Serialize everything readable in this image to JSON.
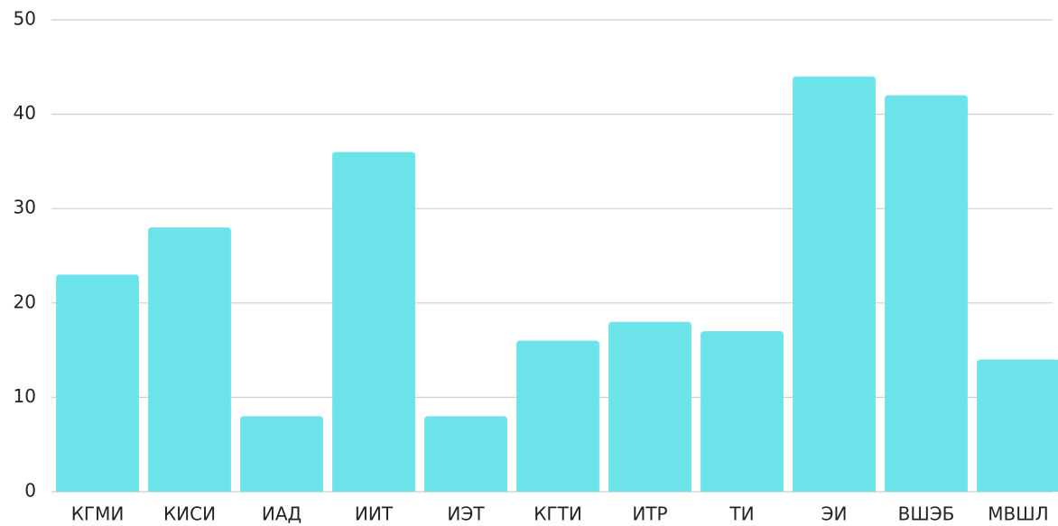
{
  "chart_data": {
    "type": "bar",
    "categories": [
      "КГМИ",
      "КИСИ",
      "ИАД",
      "ИИТ",
      "ИЭТ",
      "КГТИ",
      "ИТР",
      "ТИ",
      "ЭИ",
      "ВШЭБ",
      "МВШЛ"
    ],
    "values": [
      23,
      28,
      8,
      36,
      8,
      16,
      18,
      17,
      44,
      42,
      14
    ],
    "color": "#6be3e8",
    "ylim": [
      0,
      50
    ],
    "yticks": [
      0,
      10,
      20,
      30,
      40,
      50
    ],
    "grid": true
  }
}
